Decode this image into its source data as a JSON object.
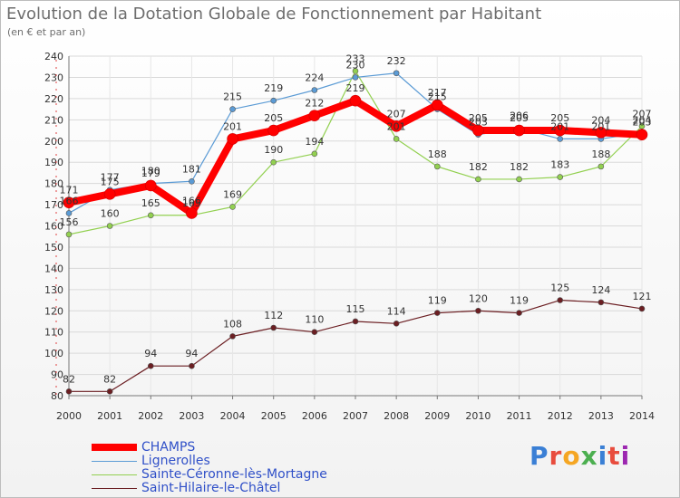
{
  "header": {
    "title": "Evolution de la Dotation Globale de Fonctionnement par Habitant",
    "subtitle": "(en € et par an)"
  },
  "brand": {
    "name": "Proxiti",
    "colors": [
      "#3a7fd5",
      "#e84c3d",
      "#f5a623",
      "#4caf50",
      "#3a7fd5",
      "#e84c3d",
      "#9c27b0"
    ]
  },
  "chart_data": {
    "type": "line",
    "title": "Evolution de la Dotation Globale de Fonctionnement par Habitant",
    "subtitle": "(en € et par an)",
    "x": [
      2000,
      2001,
      2002,
      2003,
      2004,
      2005,
      2006,
      2007,
      2008,
      2009,
      2010,
      2011,
      2012,
      2013,
      2014
    ],
    "ylim": [
      80,
      240
    ],
    "yticks": [
      80,
      90,
      100,
      110,
      120,
      130,
      140,
      150,
      160,
      170,
      180,
      190,
      200,
      210,
      220,
      230,
      240
    ],
    "grid": "horizontal",
    "legend_placement": "bottom-left",
    "series": [
      {
        "name": "CHAMPS",
        "color": "#ff0000",
        "values": [
          171,
          175,
          179,
          166,
          201,
          205,
          212,
          219,
          207,
          217,
          205,
          205,
          205,
          204,
          203
        ]
      },
      {
        "name": "Lignerolles",
        "color": "#5b9bd5",
        "values": [
          166,
          177,
          180,
          181,
          215,
          219,
          224,
          230,
          232,
          215,
          203,
          206,
          201,
          201,
          204
        ]
      },
      {
        "name": "Sainte-Céronne-lès-Mortagne",
        "color": "#92d050",
        "values": [
          156,
          160,
          165,
          165,
          169,
          190,
          194,
          233,
          201,
          188,
          182,
          182,
          183,
          188,
          207
        ]
      },
      {
        "name": "Saint-Hilaire-le-Châtel",
        "color": "#6b1e22",
        "values": [
          82,
          82,
          94,
          94,
          108,
          112,
          110,
          115,
          114,
          119,
          120,
          119,
          125,
          124,
          121
        ]
      }
    ]
  }
}
